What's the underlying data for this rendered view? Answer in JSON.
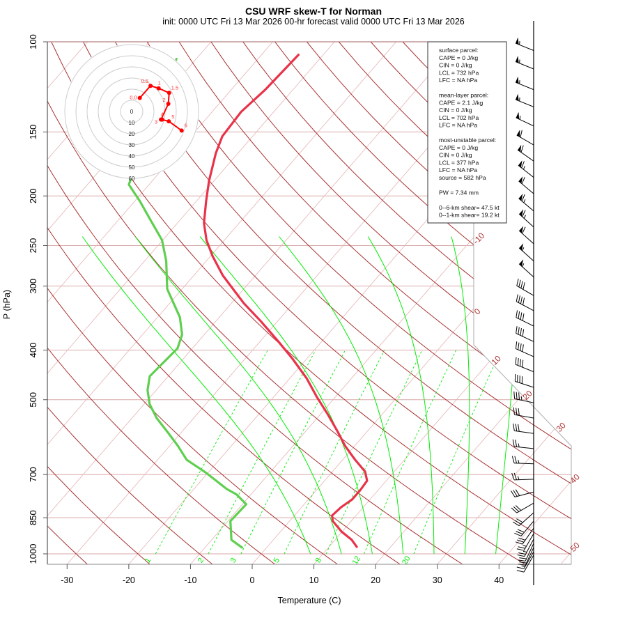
{
  "title": "CSU WRF skew-T for Norman",
  "subtitle": "init: 0000 UTC Fri 13 Mar 2026    00-hr forecast valid 0000 UTC Fri 13 Mar 2026",
  "chart_data": {
    "type": "line",
    "subtype": "skew-T log-p",
    "xlabel": "Temperature (C)",
    "ylabel": "P (hPa)",
    "x_ticks": [
      -30,
      -20,
      -10,
      0,
      10,
      20,
      30,
      40
    ],
    "x_tick_labels": [
      "-30",
      "-20",
      "-10",
      "0",
      "10",
      "20",
      "30",
      "40"
    ],
    "y_ticks": [
      100,
      150,
      200,
      250,
      300,
      400,
      500,
      700,
      850,
      1000
    ],
    "y_tick_labels": [
      "100",
      "150",
      "200",
      "250",
      "300",
      "400",
      "500",
      "700",
      "850",
      "1000"
    ],
    "ylim": [
      1000,
      100
    ],
    "isotherm_labels": [
      "-10",
      "0",
      "10",
      "20",
      "30",
      "40",
      "50"
    ],
    "isotherm_label_values": [
      -10,
      0,
      10,
      20,
      30,
      40,
      50
    ],
    "mixing_ratio_labels": [
      "1",
      "2",
      "3",
      "5",
      "8",
      "12",
      "20"
    ],
    "mixing_ratio_values": [
      1,
      2,
      3,
      5,
      8,
      12,
      20
    ],
    "colors": {
      "temperature": "#e8334a",
      "dewpoint": "#5fcf50",
      "isotherm": "#e6b3b3",
      "dry_adiabat": "#a83232",
      "moist_adiabat": "#00ee00",
      "mixing_ratio": "#00ee00",
      "isobar": "#d9a9a9",
      "hodograph": "#ff0000"
    },
    "series": [
      {
        "name": "temperature",
        "pressure": [
          969,
          939,
          905,
          863,
          842,
          811,
          783,
          750,
          720,
          691,
          655,
          615,
          578,
          534,
          494,
          454,
          416,
          385,
          352,
          324,
          286,
          262,
          244,
          226,
          205,
          187,
          165,
          153,
          137,
          124,
          106
        ],
        "values": [
          14.5,
          12.7,
          9.9,
          7.0,
          6.1,
          6.4,
          7.1,
          7.1,
          6.9,
          5.3,
          2.0,
          -1.6,
          -4.7,
          -8.8,
          -13.0,
          -17.3,
          -22.3,
          -27.0,
          -32.6,
          -38.0,
          -45.3,
          -49.7,
          -52.9,
          -55.7,
          -58.4,
          -60.8,
          -63.6,
          -64.9,
          -65.3,
          -64.5,
          -64.0
        ]
      },
      {
        "name": "dewpoint",
        "pressure": [
          972,
          939,
          863,
          800,
          766,
          747,
          693,
          655,
          615,
          578,
          543,
          510,
          479,
          450,
          422,
          397,
          373,
          345,
          304,
          268,
          244,
          222,
          205,
          190,
          108
        ],
        "values": [
          -4.0,
          -6.8,
          -9.6,
          -9.4,
          -12.3,
          -14.7,
          -20.5,
          -25.3,
          -28.7,
          -32.3,
          -36.0,
          -39.1,
          -41.4,
          -43.0,
          -42.7,
          -42.4,
          -43.6,
          -46.4,
          -52.4,
          -56.5,
          -60.1,
          -65.0,
          -69.1,
          -73.3,
          -83.2
        ]
      }
    ],
    "hodograph": {
      "ring_labels": [
        "0",
        "10",
        "20",
        "30",
        "40",
        "50",
        "60"
      ],
      "ring_values": [
        0,
        10,
        20,
        30,
        40,
        50,
        60
      ],
      "points": [
        {
          "label": "0.0",
          "u": 7.3,
          "v": 12.1
        },
        {
          "label": "0.5",
          "u": 16.9,
          "v": 23.0
        },
        {
          "label": "1",
          "u": 24.2,
          "v": 20.8
        },
        {
          "label": "1.5",
          "u": 33.6,
          "v": 16.7
        },
        {
          "label": "2",
          "u": 32.9,
          "v": 6.9
        },
        {
          "label": "3",
          "u": 26.3,
          "v": -7.3
        },
        {
          "label": "4",
          "u": 27.3,
          "v": -7.3
        },
        {
          "label": "5",
          "u": 33.3,
          "v": -8.8
        },
        {
          "label": "6",
          "u": 44.8,
          "v": -17.1
        }
      ]
    },
    "wind_barbs": [
      {
        "p": 104,
        "dir": 292,
        "spd": 55
      },
      {
        "p": 113,
        "dir": 292,
        "spd": 55
      },
      {
        "p": 124,
        "dir": 292,
        "spd": 55
      },
      {
        "p": 134,
        "dir": 292,
        "spd": 55
      },
      {
        "p": 146,
        "dir": 295,
        "spd": 55
      },
      {
        "p": 159,
        "dir": 300,
        "spd": 60
      },
      {
        "p": 171,
        "dir": 305,
        "spd": 60
      },
      {
        "p": 184,
        "dir": 308,
        "spd": 65
      },
      {
        "p": 198,
        "dir": 310,
        "spd": 60
      },
      {
        "p": 214,
        "dir": 310,
        "spd": 65
      },
      {
        "p": 230,
        "dir": 312,
        "spd": 65
      },
      {
        "p": 248,
        "dir": 312,
        "spd": 60
      },
      {
        "p": 268,
        "dir": 312,
        "spd": 55
      },
      {
        "p": 288,
        "dir": 312,
        "spd": 55
      },
      {
        "p": 313,
        "dir": 300,
        "spd": 40
      },
      {
        "p": 335,
        "dir": 298,
        "spd": 40
      },
      {
        "p": 359,
        "dir": 296,
        "spd": 40
      },
      {
        "p": 385,
        "dir": 295,
        "spd": 40
      },
      {
        "p": 412,
        "dir": 294,
        "spd": 40
      },
      {
        "p": 441,
        "dir": 292,
        "spd": 40
      },
      {
        "p": 473,
        "dir": 288,
        "spd": 40
      },
      {
        "p": 507,
        "dir": 282,
        "spd": 35
      },
      {
        "p": 543,
        "dir": 280,
        "spd": 30
      },
      {
        "p": 582,
        "dir": 278,
        "spd": 30
      },
      {
        "p": 623,
        "dir": 276,
        "spd": 25
      },
      {
        "p": 667,
        "dir": 272,
        "spd": 25
      },
      {
        "p": 715,
        "dir": 268,
        "spd": 25
      },
      {
        "p": 757,
        "dir": 255,
        "spd": 30
      },
      {
        "p": 796,
        "dir": 240,
        "spd": 30
      },
      {
        "p": 831,
        "dir": 228,
        "spd": 30
      },
      {
        "p": 863,
        "dir": 220,
        "spd": 30
      },
      {
        "p": 891,
        "dir": 215,
        "spd": 30
      },
      {
        "p": 913,
        "dir": 210,
        "spd": 25
      },
      {
        "p": 936,
        "dir": 208,
        "spd": 25
      },
      {
        "p": 954,
        "dir": 205,
        "spd": 20
      },
      {
        "p": 972,
        "dir": 205,
        "spd": 20
      },
      {
        "p": 991,
        "dir": 210,
        "spd": 15
      },
      {
        "p": 1006,
        "dir": 210,
        "spd": 10
      }
    ]
  },
  "info_box": {
    "lines": [
      "surface parcel:",
      "CAPE = 0 J/kg",
      "CIN = 0 J/kg",
      "LCL = 732 hPa",
      "LFC = NA hPa",
      "",
      "mean-layer parcel:",
      "CAPE = 2.1 J/kg",
      "CIN = 0 J/kg",
      "LCL = 702 hPa",
      "LFC = NA hPa",
      "",
      "most-unstable parcel:",
      "CAPE = 0 J/kg",
      "CIN = 0 J/kg",
      "LCL = 377 hPa",
      "LFC = NA hPa",
      "source = 582 hPa",
      "",
      "PW =  7.34 mm",
      "",
      "0--6-km shear= 47.5 kt",
      "0--1-km shear= 19.2 kt"
    ]
  }
}
